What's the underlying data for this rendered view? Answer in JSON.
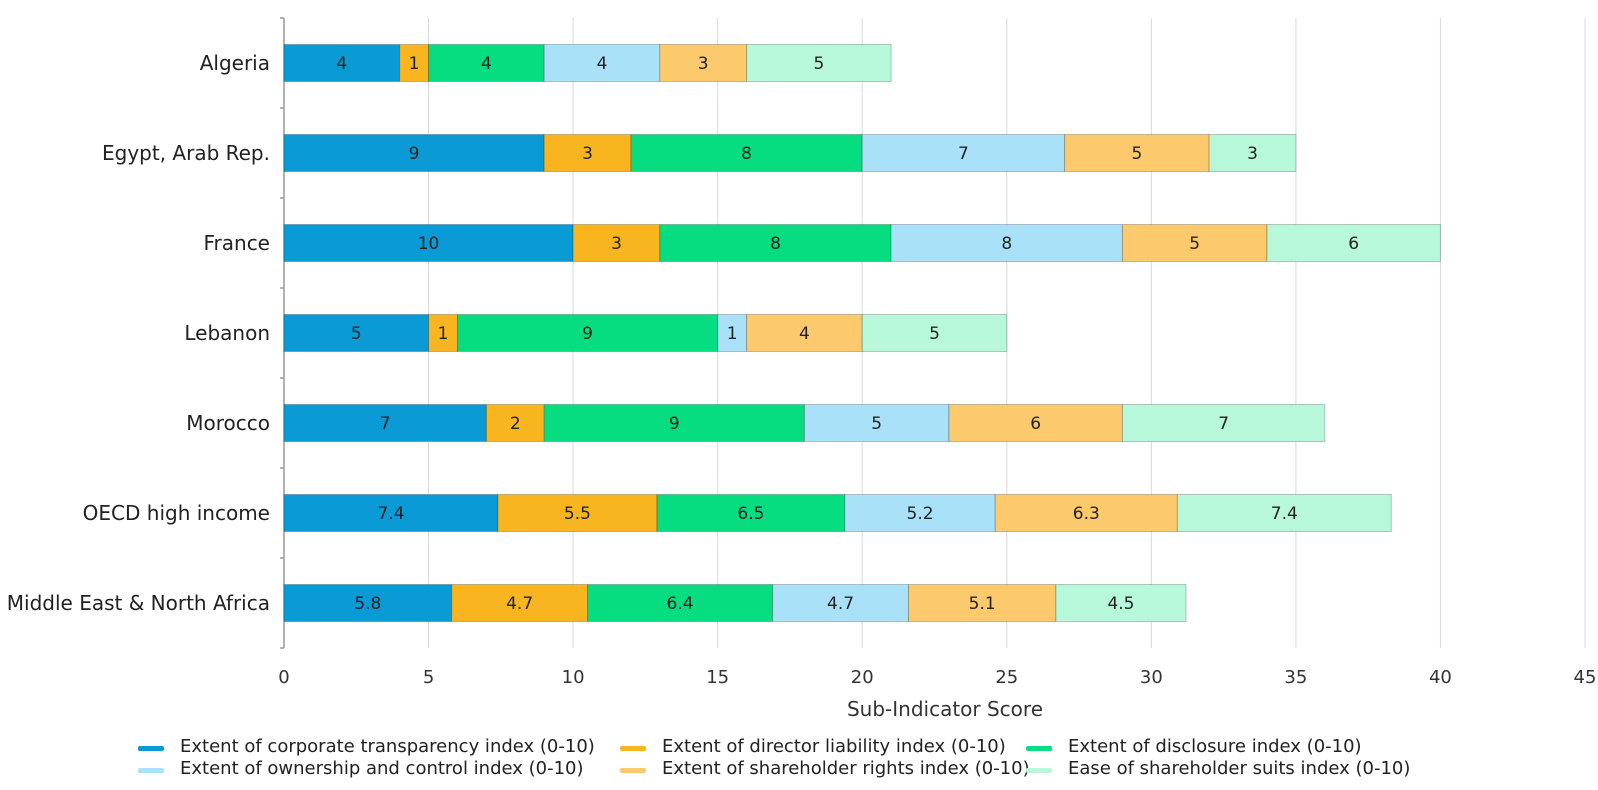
{
  "chart_data": {
    "type": "bar",
    "orientation": "horizontal",
    "stacked": true,
    "categories": [
      "Algeria",
      "Egypt, Arab Rep.",
      "France",
      "Lebanon",
      "Morocco",
      "OECD high income",
      "Middle East & North Africa"
    ],
    "series": [
      {
        "name": "Extent of corporate transparency index (0-10)",
        "color": "#0a9ad6",
        "values": [
          4,
          9,
          10,
          5,
          7,
          7.4,
          5.8
        ]
      },
      {
        "name": "Extent of director liability index (0-10)",
        "color": "#f9b51f",
        "values": [
          1,
          3,
          3,
          1,
          2,
          5.5,
          4.7
        ]
      },
      {
        "name": "Extent of disclosure index (0-10)",
        "color": "#06dc80",
        "values": [
          4,
          8,
          8,
          9,
          9,
          6.5,
          6.4
        ]
      },
      {
        "name": "Extent of ownership and control index (0-10)",
        "color": "#a9e1f8",
        "values": [
          4,
          7,
          8,
          1,
          5,
          5.2,
          4.7
        ]
      },
      {
        "name": "Extent of shareholder rights index (0-10)",
        "color": "#fcca6c",
        "values": [
          3,
          5,
          5,
          4,
          6,
          6.3,
          5.1
        ]
      },
      {
        "name": "Ease of shareholder suits index (0-10)",
        "color": "#b7f8da",
        "values": [
          5,
          3,
          6,
          5,
          7,
          7.4,
          4.5
        ]
      }
    ],
    "xlabel": "Sub-Indicator Score",
    "ylabel": "",
    "xlim": [
      0,
      45
    ],
    "xticks": [
      0,
      5,
      10,
      15,
      20,
      25,
      30,
      35,
      40,
      45
    ],
    "grid": "vertical",
    "data_labels": true,
    "legend_position": "bottom"
  }
}
